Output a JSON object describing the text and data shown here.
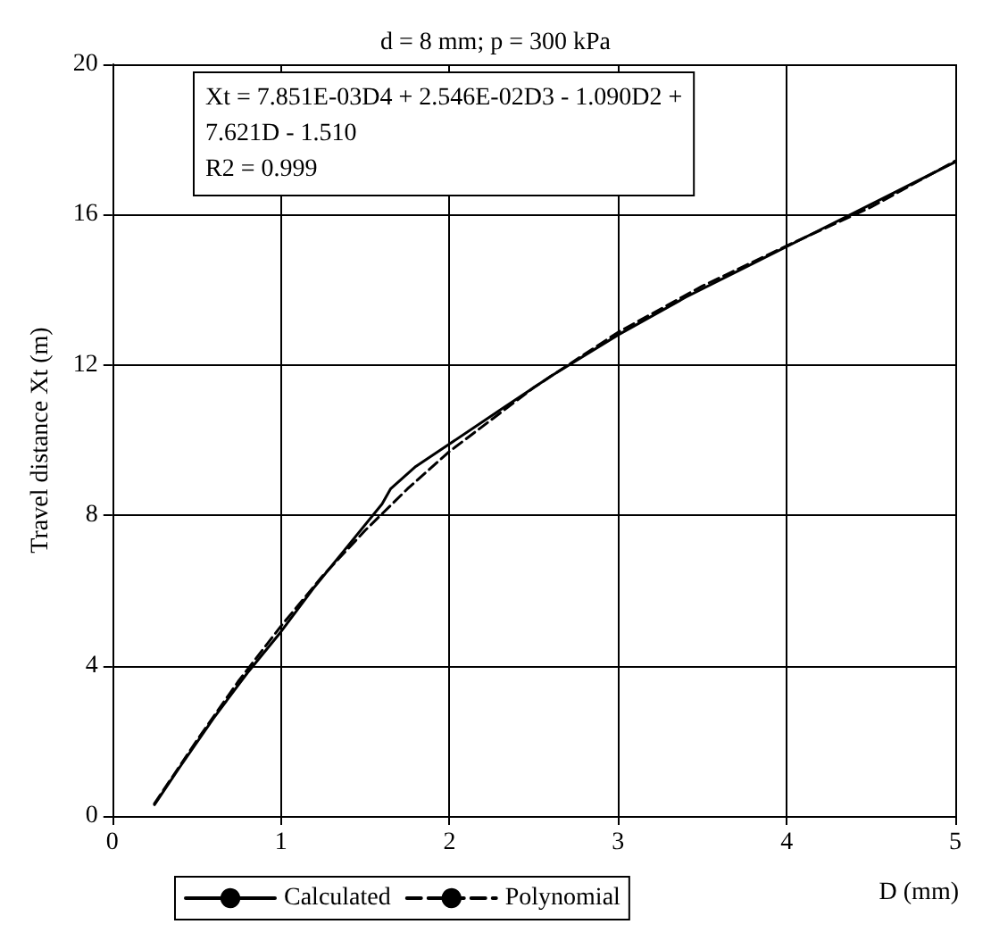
{
  "chart_data": {
    "type": "line",
    "title": "d = 8 mm; p = 300 kPa",
    "xlabel": "D (mm)",
    "ylabel": "Travel distance Xt (m)",
    "annotations": [
      "Xt = 7.851E-03D4 + 2.546E-02D3 - 1.090D2 +",
      "7.621D - 1.510",
      "R2 = 0.999"
    ],
    "xlim": [
      0,
      5
    ],
    "xticks": [
      0,
      1,
      2,
      3,
      4,
      5
    ],
    "ylim": [
      0,
      20
    ],
    "yticks": [
      0,
      4,
      8,
      12,
      16,
      20
    ],
    "grid": true,
    "legend": "bottom",
    "marker": "none",
    "series": [
      {
        "name": "Calculated",
        "color": "#000000",
        "line_style": "solid",
        "x": [
          0.25,
          0.4,
          0.6,
          0.8,
          1.0,
          1.2,
          1.4,
          1.6,
          1.65,
          1.8,
          2.0,
          2.3,
          2.6,
          3.0,
          3.4,
          3.8,
          4.2,
          4.6,
          5.0
        ],
        "values": [
          0.3,
          1.3,
          2.6,
          3.8,
          4.9,
          6.1,
          7.2,
          8.3,
          8.7,
          9.3,
          9.9,
          10.8,
          11.7,
          12.8,
          13.8,
          14.7,
          15.6,
          16.5,
          17.4
        ]
      },
      {
        "name": "Polynomial",
        "color": "#000000",
        "line_style": "dashed",
        "x": [
          0.25,
          0.5,
          0.75,
          1.0,
          1.25,
          1.5,
          1.75,
          2.0,
          2.5,
          3.0,
          3.5,
          4.0,
          4.5,
          5.0
        ],
        "values": [
          0.33,
          2.0,
          3.6,
          5.05,
          6.4,
          7.6,
          8.7,
          9.7,
          11.4,
          12.87,
          14.1,
          15.17,
          16.2,
          17.43
        ]
      }
    ]
  }
}
